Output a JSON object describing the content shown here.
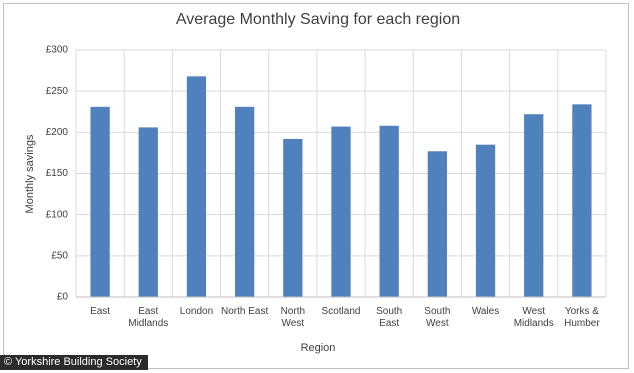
{
  "chart_data": {
    "type": "bar",
    "title": "Average Monthly Saving for each region",
    "x_label": "Region",
    "y_label": "Monthly savings",
    "categories": [
      "East",
      "East Midlands",
      "London",
      "North East",
      "North West",
      "Scotland",
      "South East",
      "South West",
      "Wales",
      "West Midlands",
      "Yorks & Humber"
    ],
    "values": [
      231,
      206,
      268,
      231,
      192,
      207,
      208,
      177,
      185,
      222,
      234
    ],
    "color": "#4f81bd",
    "ylim": [
      0,
      300
    ],
    "yticks": [
      {
        "value": 0,
        "label": "£0"
      },
      {
        "value": 50,
        "label": "£50"
      },
      {
        "value": 100,
        "label": "£100"
      },
      {
        "value": 150,
        "label": "£150"
      },
      {
        "value": 200,
        "label": "£200"
      },
      {
        "value": 250,
        "label": "£250"
      },
      {
        "value": 300,
        "label": "£300"
      }
    ],
    "grid": true
  },
  "credit": "© Yorkshire Building Society"
}
